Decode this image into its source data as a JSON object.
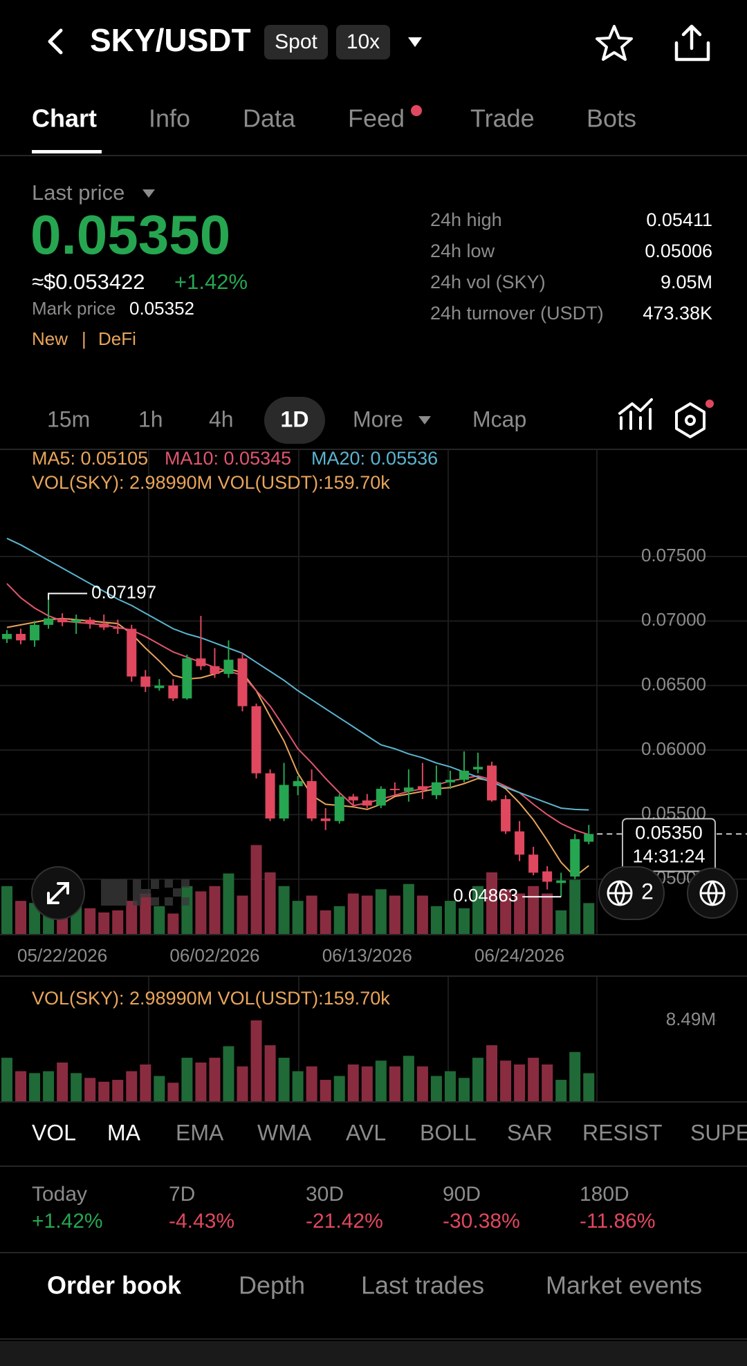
{
  "header": {
    "title": "SKY/USDT",
    "badges": [
      "Spot",
      "10x"
    ]
  },
  "tabs": [
    "Chart",
    "Info",
    "Data",
    "Feed",
    "Trade",
    "Bots"
  ],
  "ticker": {
    "last_price_label": "Last price",
    "last_price": "0.05350",
    "usd_price": "≈$0.053422",
    "change": "+1.42%",
    "mark_price_label": "Mark price",
    "mark_price": "0.05352",
    "tags": [
      "New",
      "|",
      "DeFi"
    ],
    "stats": [
      [
        "24h high",
        "0.05411"
      ],
      [
        "24h low",
        "0.05006"
      ],
      [
        "24h vol (SKY)",
        "9.05M"
      ],
      [
        "24h turnover (USDT)",
        "473.38K"
      ]
    ]
  },
  "intervals": [
    "15m",
    "1h",
    "4h",
    "1D",
    "More",
    "Mcap"
  ],
  "chart_data": {
    "type": "candlestick",
    "legend": [
      "MA5: 0.05105",
      "MA10: 0.05345",
      "MA20: 0.05536"
    ],
    "vol_legend": "VOL(SKY): 2.98990M VOL(USDT):159.70k",
    "categories": [
      null,
      null,
      null,
      null,
      "05/22/2026",
      null,
      null,
      null,
      null,
      null,
      null,
      null,
      null,
      null,
      null,
      "06/02/2026",
      null,
      null,
      null,
      null,
      null,
      null,
      null,
      null,
      null,
      null,
      "06/13/2026",
      null,
      null,
      null,
      null,
      null,
      null,
      null,
      null,
      null,
      null,
      "06/24/2026",
      null,
      null,
      null,
      null,
      null
    ],
    "open": [
      0.0686,
      0.069,
      0.0685,
      0.0697,
      0.0702,
      0.0699,
      0.0701,
      0.0698,
      0.0695,
      0.0694,
      0.0657,
      0.0648,
      0.065,
      0.064,
      0.0671,
      0.0665,
      0.0659,
      0.0671,
      0.0634,
      0.0582,
      0.0547,
      0.0572,
      0.0576,
      0.0547,
      0.0545,
      0.0564,
      0.0561,
      0.0557,
      0.057,
      0.0568,
      0.0572,
      0.0565,
      0.0575,
      0.0577,
      0.0585,
      0.0588,
      0.0562,
      0.0537,
      0.0519,
      0.0506,
      0.0497,
      0.0502,
      0.0529
    ],
    "high": [
      0.0693,
      0.0694,
      0.07,
      0.07197,
      0.0706,
      0.0705,
      0.0703,
      0.0705,
      0.0701,
      0.0697,
      0.0662,
      0.0655,
      0.0655,
      0.0674,
      0.0704,
      0.0679,
      0.0685,
      0.0675,
      0.0636,
      0.0585,
      0.059,
      0.058,
      0.0585,
      0.0555,
      0.0566,
      0.0566,
      0.0566,
      0.0572,
      0.0575,
      0.0585,
      0.059,
      0.0588,
      0.0584,
      0.0599,
      0.0598,
      0.0591,
      0.0565,
      0.0545,
      0.0525,
      0.051,
      0.0505,
      0.0535,
      0.0542
    ],
    "low": [
      0.0683,
      0.0682,
      0.068,
      0.0694,
      0.0696,
      0.069,
      0.0694,
      0.0693,
      0.069,
      0.0653,
      0.0645,
      0.0646,
      0.0638,
      0.0639,
      0.0662,
      0.0656,
      0.0656,
      0.063,
      0.0578,
      0.0545,
      0.0545,
      0.0565,
      0.0545,
      0.0538,
      0.0543,
      0.0557,
      0.0555,
      0.0555,
      0.0565,
      0.056,
      0.0562,
      0.0562,
      0.057,
      0.0575,
      0.0582,
      0.056,
      0.0535,
      0.0514,
      0.0503,
      0.0492,
      0.04863,
      0.05,
      0.0527
    ],
    "close": [
      0.069,
      0.0685,
      0.0697,
      0.0702,
      0.0699,
      0.0701,
      0.0698,
      0.0695,
      0.0694,
      0.0657,
      0.0649,
      0.065,
      0.064,
      0.0671,
      0.0665,
      0.0659,
      0.067,
      0.0634,
      0.0582,
      0.0547,
      0.0573,
      0.0576,
      0.0547,
      0.0545,
      0.0564,
      0.0561,
      0.0557,
      0.057,
      0.0569,
      0.0571,
      0.0569,
      0.0575,
      0.0577,
      0.0584,
      0.0587,
      0.0561,
      0.0537,
      0.0519,
      0.0505,
      0.0498,
      0.0499,
      0.0531,
      0.0535
    ],
    "up_color": "#26a650",
    "down_color": "#e0485f",
    "vol_up_color": "#1f6a36",
    "vol_down_color": "#8a2c40",
    "ma": [
      {
        "name": "MA5",
        "color": "#e9a55b",
        "values": [
          0.0695,
          0.0697,
          0.0699,
          0.0701,
          0.0702,
          0.0701,
          0.07,
          0.0699,
          0.0698,
          0.069,
          0.0679,
          0.0669,
          0.0658,
          0.0655,
          0.0656,
          0.0659,
          0.0663,
          0.066,
          0.0646,
          0.0626,
          0.0607,
          0.0582,
          0.0565,
          0.0558,
          0.0557,
          0.0556,
          0.0554,
          0.0558,
          0.0564,
          0.0566,
          0.0568,
          0.057,
          0.0571,
          0.0574,
          0.0578,
          0.0576,
          0.057,
          0.0559,
          0.0546,
          0.053,
          0.0513,
          0.0502,
          0.05105
        ]
      },
      {
        "name": "MA10",
        "color": "#e0566f",
        "values": [
          0.0729,
          0.0718,
          0.071,
          0.0704,
          0.07,
          0.0699,
          0.0698,
          0.0697,
          0.0695,
          0.0693,
          0.0688,
          0.0682,
          0.0676,
          0.0672,
          0.0668,
          0.0664,
          0.0661,
          0.0658,
          0.0646,
          0.0634,
          0.0618,
          0.0601,
          0.059,
          0.0578,
          0.0567,
          0.0557,
          0.0559,
          0.0562,
          0.0565,
          0.0568,
          0.057,
          0.0573,
          0.0576,
          0.0578,
          0.058,
          0.0577,
          0.0572,
          0.0567,
          0.0558,
          0.055,
          0.0543,
          0.0538,
          0.05345
        ]
      },
      {
        "name": "MA20",
        "color": "#5bb5d0",
        "values": [
          0.0764,
          0.0759,
          0.0753,
          0.0747,
          0.0741,
          0.0735,
          0.0729,
          0.0723,
          0.0717,
          0.0712,
          0.0706,
          0.07,
          0.0694,
          0.069,
          0.0687,
          0.0683,
          0.0679,
          0.0675,
          0.0668,
          0.0661,
          0.0654,
          0.0646,
          0.0639,
          0.0632,
          0.0625,
          0.0618,
          0.0611,
          0.0604,
          0.0601,
          0.0597,
          0.0594,
          0.059,
          0.0587,
          0.0583,
          0.0579,
          0.0575,
          0.0571,
          0.0567,
          0.0563,
          0.0559,
          0.0555,
          0.0554,
          0.05536
        ]
      }
    ],
    "volume": [
      4.6,
      3.2,
      3.0,
      3.2,
      4.1,
      3.0,
      2.5,
      2.1,
      2.3,
      3.2,
      3.9,
      2.7,
      2.0,
      4.6,
      4.1,
      4.6,
      5.8,
      3.7,
      8.49,
      5.9,
      4.6,
      3.2,
      3.7,
      2.3,
      2.7,
      3.9,
      3.7,
      4.3,
      3.7,
      4.8,
      3.7,
      2.7,
      3.2,
      2.5,
      4.6,
      5.9,
      4.3,
      3.9,
      4.6,
      3.9,
      2.3,
      5.2,
      2.99
    ],
    "ylim": [
      0.0457,
      0.0833
    ],
    "yticks": [
      {
        "value": 0.05,
        "label": "0.05000"
      },
      {
        "value": 0.055,
        "label": "0.05500"
      },
      {
        "value": 0.06,
        "label": "0.06000"
      },
      {
        "value": 0.065,
        "label": "0.06500"
      },
      {
        "value": 0.07,
        "label": "0.07000"
      },
      {
        "value": 0.075,
        "label": "0.07500"
      }
    ],
    "grid": true,
    "vol_ylim": [
      0,
      9.5
    ],
    "vol_yticks": [
      {
        "value": 8.49,
        "label": "8.49M"
      }
    ],
    "max_label": "0.07197",
    "min_label": "0.04863",
    "last_label": "0.05350",
    "last_time": "14:31:24",
    "badge_count": "2"
  },
  "indicators": [
    "VOL",
    "MA",
    "EMA",
    "WMA",
    "AVL",
    "BOLL",
    "SAR",
    "RESIST",
    "SUPE"
  ],
  "performance": [
    [
      "Today",
      "+1.42%"
    ],
    [
      "7D",
      "-4.43%"
    ],
    [
      "30D",
      "-21.42%"
    ],
    [
      "90D",
      "-30.38%"
    ],
    [
      "180D",
      "-11.86%"
    ]
  ],
  "bottom_tabs": [
    "Order book",
    "Depth",
    "Last trades",
    "Market events"
  ]
}
